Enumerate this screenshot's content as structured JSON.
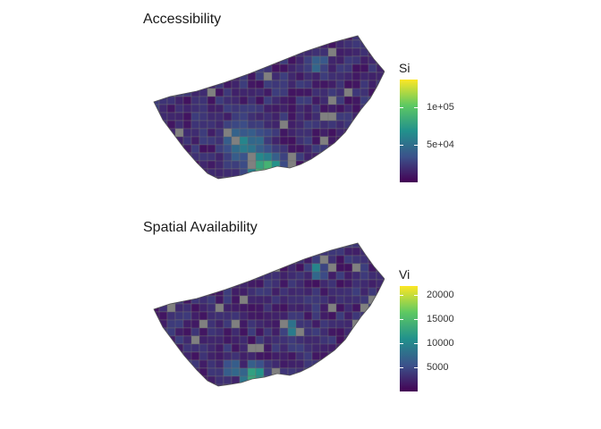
{
  "panels": [
    {
      "title": "Accessibility",
      "legend": {
        "title": "Si",
        "ticks": [
          "1e+05",
          "5e+04"
        ],
        "gradient": [
          "#440154",
          "#3b528b",
          "#21918c",
          "#5ec962",
          "#fde725"
        ]
      }
    },
    {
      "title": "Spatial Availability",
      "legend": {
        "title": "Vi",
        "ticks": [
          "20000",
          "15000",
          "10000",
          "5000"
        ],
        "gradient": [
          "#440154",
          "#3b528b",
          "#21918c",
          "#5ec962",
          "#fde725"
        ]
      }
    }
  ],
  "colors": {
    "missing": "#808080",
    "tract_border": "#6e6e6e"
  }
}
